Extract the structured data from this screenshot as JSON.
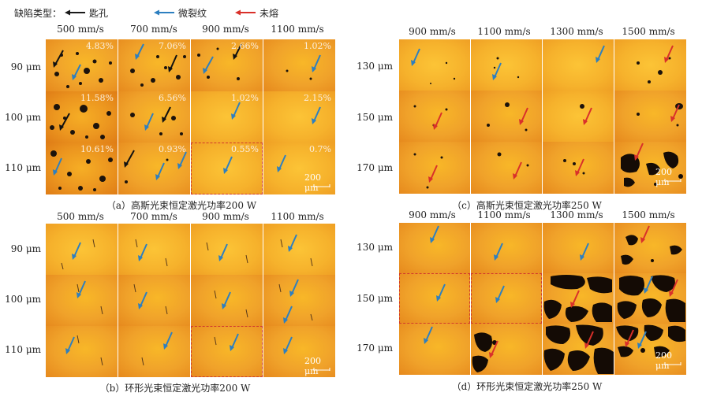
{
  "legend": {
    "label": "缺陷类型：",
    "items": [
      {
        "name": "匙孔",
        "color": "#1a1a1a"
      },
      {
        "name": "微裂纹",
        "color": "#2d7fc0"
      },
      {
        "name": "未熔",
        "color": "#d9302a"
      }
    ]
  },
  "panels": [
    {
      "id": "a",
      "caption": "（a）高斯光束恒定激光功率200 W",
      "speeds": [
        "500 mm/s",
        "700 mm/s",
        "900 mm/s",
        "1100 mm/s"
      ],
      "spacings": [
        "90 μm",
        "100 μm",
        "110 μm"
      ],
      "porosity": [
        [
          "4.83%",
          "7.06%",
          "2.66%",
          "1.02%"
        ],
        [
          "11.58%",
          "6.56%",
          "1.02%",
          "2.15%"
        ],
        [
          "10.61%",
          "0.93%",
          "0.55%",
          "0.7%"
        ]
      ],
      "scale_bar": "200 μm"
    },
    {
      "id": "b",
      "caption": "（b）环形光束恒定激光功率200 W",
      "speeds": [
        "500 mm/s",
        "700 mm/s",
        "900 mm/s",
        "1100 mm/s"
      ],
      "spacings": [
        "90 μm",
        "100 μm",
        "110 μm"
      ],
      "scale_bar": "200 μm"
    },
    {
      "id": "c",
      "caption": "（c）高斯光束恒定激光功率250 W",
      "speeds": [
        "900 mm/s",
        "1100 mm/s",
        "1300 mm/s",
        "1500 mm/s"
      ],
      "spacings": [
        "130 μm",
        "150 μm",
        "170 μm"
      ],
      "scale_bar": "200 μm"
    },
    {
      "id": "d",
      "caption": "（d）环形光束恒定激光功率250 W",
      "speeds": [
        "900 mm/s",
        "1100 mm/s",
        "1300 mm/s",
        "1500 mm/s"
      ],
      "spacings": [
        "130 μm",
        "150 μm",
        "170 μm"
      ],
      "scale_bar": "200 μm"
    }
  ]
}
